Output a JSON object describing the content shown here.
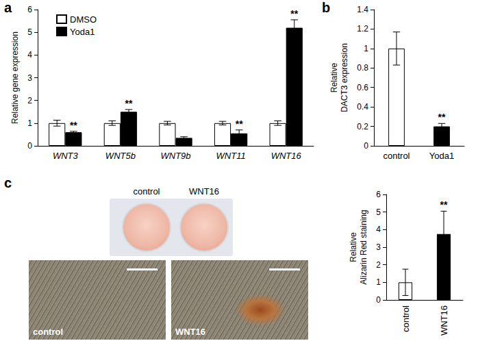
{
  "chart_data": [
    {
      "panel": "a",
      "type": "bar",
      "ylabel": "Relative gene expression",
      "categories": [
        "WNT3",
        "WNT5b",
        "WNT9b",
        "WNT11",
        "WNT16"
      ],
      "series": [
        {
          "name": "DMSO",
          "color": "#ffffff",
          "values": [
            1,
            1,
            1,
            1,
            1
          ],
          "errors": [
            0.13,
            0.1,
            0.08,
            0.08,
            0.1
          ]
        },
        {
          "name": "Yoda1",
          "color": "#000000",
          "values": [
            0.6,
            1.5,
            0.35,
            0.55,
            5.2
          ],
          "errors": [
            0.04,
            0.1,
            0.05,
            0.15,
            0.35
          ],
          "significance": [
            "**",
            "**",
            null,
            "**",
            "**"
          ]
        }
      ],
      "ylim": [
        0,
        6
      ],
      "yticks": [
        0,
        1,
        2,
        3,
        4,
        5,
        6
      ],
      "legend": "top-left",
      "grid": false
    },
    {
      "panel": "b",
      "type": "bar",
      "ylabel": "Relative\nDACT3 expression",
      "categories": [
        "control",
        "Yoda1"
      ],
      "values": [
        1,
        0.2
      ],
      "errors": [
        0.17,
        0.03
      ],
      "significance": [
        null,
        "**"
      ],
      "colors": [
        "#ffffff",
        "#000000"
      ],
      "ylim": [
        0,
        1.4
      ],
      "yticks": [
        0,
        0.2,
        0.4,
        0.6,
        0.8,
        1,
        1.2,
        1.4
      ],
      "grid": false
    },
    {
      "panel": "c",
      "type": "bar",
      "ylabel": "Relative\nAlizarin Red staining",
      "categories": [
        "control",
        "WNT16"
      ],
      "values": [
        1,
        3.75
      ],
      "errors": [
        0.75,
        1.3
      ],
      "significance": [
        null,
        "**"
      ],
      "colors": [
        "#ffffff",
        "#000000"
      ],
      "ylim": [
        0,
        6
      ],
      "yticks": [
        0,
        1,
        2,
        3,
        4,
        5,
        6
      ],
      "grid": false
    }
  ],
  "images": {
    "dishes": [
      "control",
      "WNT16"
    ],
    "micrographs": [
      "control",
      "WNT16"
    ]
  }
}
